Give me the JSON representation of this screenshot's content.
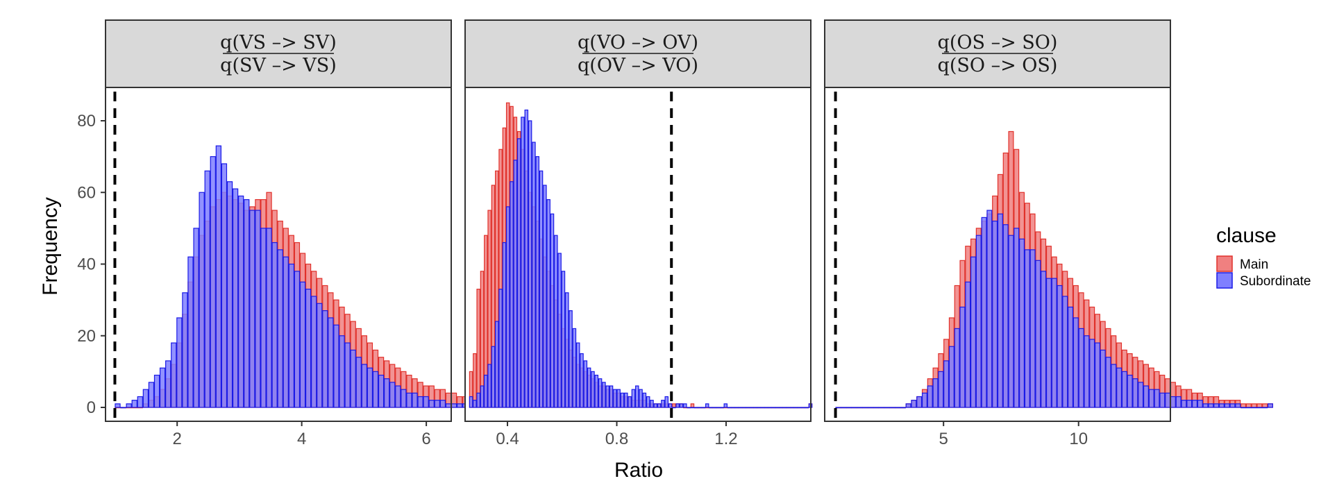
{
  "chart_data": {
    "type": "bar",
    "subtype": "faceted-histogram",
    "xlabel": "Ratio",
    "ylabel": "Frequency",
    "ylim": [
      0,
      90
    ],
    "yticks": [
      0,
      20,
      40,
      60,
      80
    ],
    "grid": false,
    "legend": {
      "title": "clause",
      "placement": "right",
      "entries": [
        {
          "name": "Main",
          "fill": "#F08080",
          "stroke": "#E0302A"
        },
        {
          "name": "Subordinate",
          "fill": "#7F7FFF",
          "stroke": "#1A1AE6"
        }
      ]
    },
    "panels": [
      {
        "strip_numerator": "q(VS –> SV)",
        "strip_denominator": "q(SV –> VS)",
        "xlim": [
          0.85,
          6.4
        ],
        "xticks": [
          2,
          4,
          6
        ],
        "xtick_labels": [
          "2",
          "4",
          "6"
        ],
        "vline": 1,
        "bin_start": 1.0,
        "bin_width": 0.09,
        "series": [
          {
            "name": "Main",
            "values": [
              0,
              0,
              0,
              0,
              0,
              1,
              2,
              3,
              5,
              8,
              12,
              18,
              26,
              35,
              42,
              48,
              52,
              56,
              58,
              60,
              59,
              58,
              57,
              55,
              56,
              58,
              58,
              60,
              55,
              52,
              50,
              48,
              46,
              43,
              40,
              38,
              36,
              34,
              32,
              30,
              28,
              26,
              24,
              22,
              20,
              18,
              16,
              14,
              13,
              12,
              11,
              10,
              9,
              8,
              7,
              6,
              6,
              5,
              5,
              4,
              4,
              3,
              3,
              3,
              2,
              2,
              2,
              2
            ]
          },
          {
            "name": "Subordinate",
            "values": [
              1,
              0,
              1,
              2,
              3,
              5,
              7,
              9,
              11,
              13,
              18,
              25,
              32,
              42,
              50,
              60,
              66,
              70,
              73,
              68,
              63,
              61,
              59,
              58,
              55,
              55,
              50,
              50,
              46,
              44,
              42,
              40,
              38,
              35,
              33,
              31,
              29,
              27,
              25,
              23,
              20,
              18,
              16,
              14,
              12,
              11,
              10,
              9,
              8,
              7,
              6,
              5,
              4,
              4,
              3,
              3,
              2,
              2,
              2,
              1,
              1,
              1,
              1,
              1,
              0,
              1,
              0,
              1
            ]
          }
        ]
      },
      {
        "strip_numerator": "q(VO –> OV)",
        "strip_denominator": "q(OV –> VO)",
        "xlim": [
          0.245,
          1.51
        ],
        "xticks": [
          0.4,
          0.8,
          1.2
        ],
        "xtick_labels": [
          "0.4",
          "0.8",
          "1.2"
        ],
        "vline": 1,
        "bin_start": 0.26,
        "bin_width": 0.0135,
        "series": [
          {
            "name": "Main",
            "values": [
              10,
              15,
              33,
              38,
              48,
              55,
              62,
              66,
              72,
              78,
              85,
              84,
              81,
              77,
              72,
              66,
              60,
              56,
              52,
              47,
              42,
              38,
              34,
              30,
              26,
              22,
              19,
              16,
              14,
              12,
              11,
              10,
              9,
              8,
              7,
              6,
              6,
              5,
              5,
              4,
              4,
              3,
              3,
              3,
              2,
              2,
              2,
              2,
              1,
              1,
              1,
              1,
              1,
              1,
              1,
              1,
              1,
              1,
              0,
              0,
              1,
              0,
              0,
              0,
              0,
              0,
              0,
              0,
              0,
              0,
              0,
              0,
              0,
              0,
              0,
              0,
              0,
              0,
              0,
              0,
              0,
              0,
              0,
              0,
              0,
              0,
              0,
              0,
              0,
              0,
              0,
              0,
              1
            ]
          },
          {
            "name": "Subordinate",
            "values": [
              3,
              2,
              4,
              6,
              9,
              12,
              17,
              24,
              33,
              46,
              56,
              63,
              69,
              75,
              81,
              83,
              80,
              74,
              70,
              66,
              62,
              58,
              54,
              48,
              43,
              38,
              32,
              27,
              22,
              18,
              15,
              13,
              11,
              10,
              9,
              8,
              7,
              6,
              6,
              5,
              5,
              4,
              4,
              3,
              5,
              6,
              5,
              4,
              3,
              2,
              1,
              1,
              2,
              3,
              1,
              0,
              1,
              1,
              1,
              0,
              0,
              0,
              0,
              0,
              1,
              0,
              0,
              0,
              0,
              1,
              0,
              0,
              0,
              0,
              0,
              0,
              0,
              0,
              0,
              0,
              0,
              0,
              0,
              0,
              0,
              0,
              0,
              0,
              0,
              0,
              0,
              0,
              1
            ]
          }
        ]
      },
      {
        "strip_numerator": "q(OS –> SO)",
        "strip_denominator": "q(SO –> OS)",
        "xlim": [
          0.6,
          13.4
        ],
        "xticks": [
          5,
          10
        ],
        "xtick_labels": [
          "5",
          "10"
        ],
        "vline": 1,
        "bin_start": 1.0,
        "bin_width": 0.2,
        "series": [
          {
            "name": "Main",
            "values": [
              0,
              0,
              0,
              0,
              0,
              0,
              0,
              0,
              0,
              0,
              0,
              0,
              0,
              1,
              2,
              3,
              5,
              8,
              11,
              15,
              19,
              25,
              34,
              41,
              45,
              47,
              50,
              52,
              54,
              59,
              65,
              71,
              77,
              72,
              60,
              57,
              54,
              49,
              47,
              45,
              42,
              40,
              38,
              36,
              34,
              32,
              30,
              28,
              26,
              24,
              22,
              20,
              18,
              16,
              15,
              14,
              13,
              12,
              11,
              10,
              9,
              8,
              7,
              6,
              5,
              5,
              4,
              4,
              3,
              3,
              3,
              2,
              2,
              2,
              2,
              1,
              1,
              1,
              1,
              1,
              1
            ]
          },
          {
            "name": "Subordinate",
            "values": [
              0,
              0,
              0,
              0,
              0,
              0,
              0,
              0,
              0,
              0,
              0,
              0,
              0,
              1,
              2,
              3,
              4,
              6,
              8,
              10,
              13,
              17,
              22,
              28,
              35,
              42,
              48,
              53,
              55,
              52,
              54,
              51,
              48,
              50,
              47,
              44,
              44,
              41,
              38,
              36,
              36,
              34,
              31,
              28,
              25,
              22,
              20,
              19,
              18,
              16,
              14,
              12,
              11,
              10,
              9,
              8,
              7,
              6,
              5,
              5,
              4,
              4,
              3,
              3,
              2,
              2,
              2,
              2,
              1,
              1,
              1,
              1,
              1,
              1,
              1,
              0,
              0,
              0,
              0,
              0,
              1
            ]
          }
        ]
      }
    ]
  }
}
